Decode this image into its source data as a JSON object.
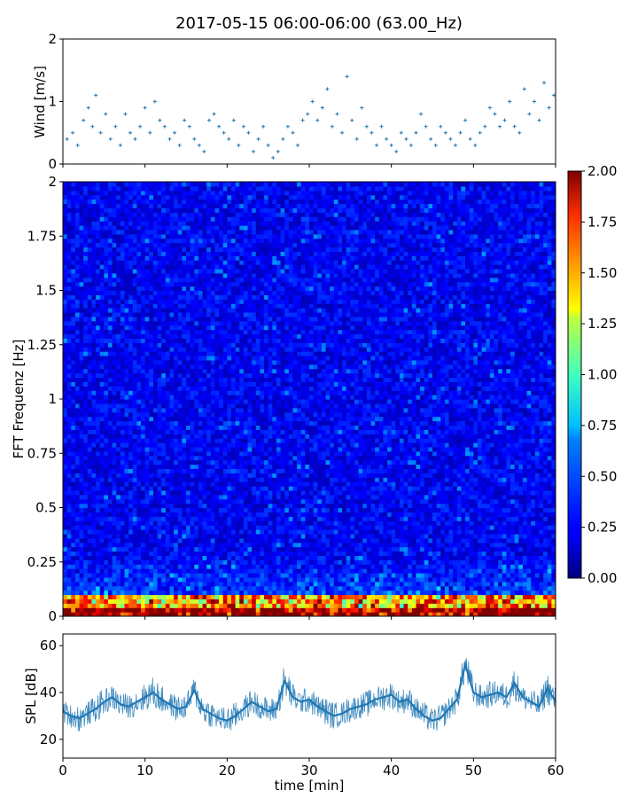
{
  "figure": {
    "title": "2017-05-15 06:00-06:00 (63.00_Hz)"
  },
  "chart_data": [
    {
      "type": "scatter",
      "panel": "wind",
      "ylabel": "Wind [m/s]",
      "xlim": [
        0,
        60
      ],
      "ylim": [
        0,
        2
      ],
      "yticks": [
        "0",
        "1",
        "2"
      ],
      "marker": "+",
      "color": "#1f77b4",
      "series": [
        {
          "x": [
            0.5,
            1.2,
            1.8,
            2.5,
            3.1,
            3.6,
            4.0,
            4.6,
            5.2,
            5.8,
            6.4,
            7.0,
            7.6,
            8.2,
            8.8,
            9.4,
            10.0,
            10.6,
            11.2,
            11.8,
            12.4,
            13.0,
            13.6,
            14.2,
            14.8,
            15.4,
            16.0,
            16.6,
            17.2,
            17.8,
            18.4,
            19.0,
            19.6,
            20.2,
            20.8,
            21.4,
            22.0,
            22.6,
            23.2,
            23.8,
            24.4,
            25.0,
            25.6,
            26.2,
            26.8,
            27.4,
            28.0,
            28.6,
            29.2,
            29.8,
            30.4,
            31.0,
            31.6,
            32.2,
            32.8,
            33.4,
            34.0,
            34.6,
            35.2,
            35.8,
            36.4,
            37.0,
            37.6,
            38.2,
            38.8,
            39.4,
            40.0,
            40.6,
            41.2,
            41.8,
            42.4,
            43.0,
            43.6,
            44.2,
            44.8,
            45.4,
            46.0,
            46.6,
            47.2,
            47.8,
            48.4,
            49.0,
            49.6,
            50.2,
            50.8,
            51.4,
            52.0,
            52.6,
            53.2,
            53.8,
            54.4,
            55.0,
            55.6,
            56.2,
            56.8,
            57.4,
            58.0,
            58.6,
            59.2,
            59.8
          ],
          "y": [
            0.4,
            0.5,
            0.3,
            0.7,
            0.9,
            0.6,
            1.1,
            0.5,
            0.8,
            0.4,
            0.6,
            0.3,
            0.8,
            0.5,
            0.4,
            0.6,
            0.9,
            0.5,
            1.0,
            0.7,
            0.6,
            0.4,
            0.5,
            0.3,
            0.7,
            0.6,
            0.4,
            0.3,
            0.2,
            0.7,
            0.8,
            0.6,
            0.5,
            0.4,
            0.7,
            0.3,
            0.6,
            0.5,
            0.2,
            0.4,
            0.6,
            0.3,
            0.1,
            0.2,
            0.4,
            0.6,
            0.5,
            0.3,
            0.7,
            0.8,
            1.0,
            0.7,
            0.9,
            1.2,
            0.6,
            0.8,
            0.5,
            1.4,
            0.7,
            0.4,
            0.9,
            0.6,
            0.5,
            0.3,
            0.6,
            0.4,
            0.3,
            0.2,
            0.5,
            0.4,
            0.3,
            0.5,
            0.8,
            0.6,
            0.4,
            0.3,
            0.6,
            0.5,
            0.4,
            0.3,
            0.5,
            0.7,
            0.4,
            0.3,
            0.5,
            0.6,
            0.9,
            0.8,
            0.6,
            0.7,
            1.0,
            0.6,
            0.5,
            1.2,
            0.8,
            1.0,
            0.7,
            1.3,
            0.9,
            1.1
          ]
        }
      ]
    },
    {
      "type": "heatmap",
      "panel": "spectrogram",
      "ylabel": "FFT Frequenz [Hz]",
      "xlim": [
        0,
        60
      ],
      "ylim": [
        0,
        2
      ],
      "yticks": [
        "0",
        "0.25",
        "0.5",
        "0.75",
        "1",
        "1.25",
        "1.5",
        "1.75",
        "2"
      ],
      "colormap": "jet",
      "colorbar": {
        "range": [
          0,
          2
        ],
        "ticks": [
          "0.00",
          "0.25",
          "0.50",
          "0.75",
          "1.00",
          "1.25",
          "1.50",
          "1.75",
          "2.00"
        ]
      },
      "description_values": {
        "x_bins": 120,
        "y_bins": 100,
        "low_freq_band_hz": [
          0,
          0.15
        ],
        "low_freq_level": [
          0.9,
          2.0
        ],
        "background_level": [
          0.1,
          0.35
        ]
      }
    },
    {
      "type": "line",
      "panel": "spl",
      "ylabel": "SPL [dB]",
      "xlabel": "time [min]",
      "xlim": [
        0,
        60
      ],
      "ylim": [
        12,
        65
      ],
      "xticks": [
        "0",
        "10",
        "20",
        "30",
        "40",
        "50",
        "60"
      ],
      "yticks": [
        "20",
        "40",
        "60"
      ],
      "color": "#1f77b4",
      "series": [
        {
          "x": [
            0,
            1,
            2,
            3,
            4,
            5,
            6,
            7,
            8,
            9,
            10,
            11,
            12,
            13,
            14,
            15,
            16,
            17,
            18,
            19,
            20,
            21,
            22,
            23,
            24,
            25,
            26,
            27,
            28,
            29,
            30,
            31,
            32,
            33,
            34,
            35,
            36,
            37,
            38,
            39,
            40,
            41,
            42,
            43,
            44,
            45,
            46,
            47,
            48,
            49,
            50,
            51,
            52,
            53,
            54,
            55,
            56,
            57,
            58,
            59,
            60
          ],
          "y": [
            32,
            30,
            29,
            31,
            33,
            36,
            38,
            35,
            34,
            36,
            38,
            40,
            37,
            35,
            33,
            34,
            41,
            33,
            31,
            29,
            28,
            30,
            33,
            36,
            34,
            32,
            33,
            45,
            38,
            36,
            37,
            34,
            32,
            30,
            31,
            33,
            34,
            35,
            37,
            38,
            39,
            36,
            37,
            33,
            30,
            28,
            29,
            33,
            37,
            52,
            40,
            38,
            39,
            40,
            38,
            44,
            38,
            36,
            34,
            42,
            36
          ],
          "band": [
            5,
            5,
            6,
            5,
            6,
            6,
            5,
            6,
            5,
            6,
            6,
            7,
            6,
            5,
            6,
            5,
            6,
            6,
            6,
            5,
            6,
            6,
            5,
            6,
            5,
            6,
            5,
            8,
            6,
            5,
            6,
            5,
            6,
            6,
            5,
            6,
            5,
            6,
            5,
            6,
            6,
            5,
            6,
            5,
            6,
            5,
            6,
            5,
            6,
            7,
            6,
            5,
            6,
            5,
            6,
            7,
            5,
            6,
            5,
            7,
            6
          ]
        }
      ]
    }
  ]
}
